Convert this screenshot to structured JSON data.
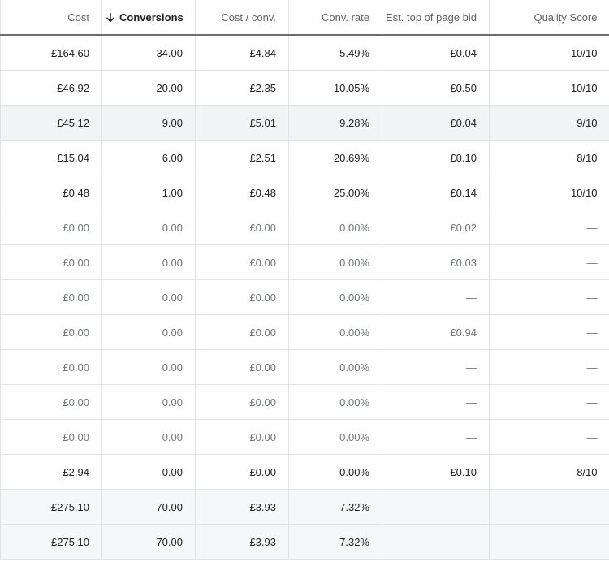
{
  "table": {
    "headers": [
      "Cost",
      "Conversions",
      "Cost / conv.",
      "Conv. rate",
      "Est. top of page bid",
      "Quality Score"
    ],
    "rows": [
      [
        "£164.60",
        "34.00",
        "£4.84",
        "5.49%",
        "£0.04",
        "10/10"
      ],
      [
        "£46.92",
        "20.00",
        "£2.35",
        "10.05%",
        "£0.50",
        "10/10"
      ],
      [
        "£45.12",
        "9.00",
        "£5.01",
        "9.28%",
        "£0.04",
        "9/10"
      ],
      [
        "£15.04",
        "6.00",
        "£2.51",
        "20.69%",
        "£0.10",
        "8/10"
      ],
      [
        "£0.48",
        "1.00",
        "£0.48",
        "25.00%",
        "£0.14",
        "10/10"
      ],
      [
        "£0.00",
        "0.00",
        "£0.00",
        "0.00%",
        "£0.02",
        "—"
      ],
      [
        "£0.00",
        "0.00",
        "£0.00",
        "0.00%",
        "£0.03",
        "—"
      ],
      [
        "£0.00",
        "0.00",
        "£0.00",
        "0.00%",
        "—",
        "—"
      ],
      [
        "£0.00",
        "0.00",
        "£0.00",
        "0.00%",
        "£0.94",
        "—"
      ],
      [
        "£0.00",
        "0.00",
        "£0.00",
        "0.00%",
        "—",
        "—"
      ],
      [
        "£0.00",
        "0.00",
        "£0.00",
        "0.00%",
        "—",
        "—"
      ],
      [
        "£0.00",
        "0.00",
        "£0.00",
        "0.00%",
        "—",
        "—"
      ],
      [
        "£2.94",
        "0.00",
        "£0.00",
        "0.00%",
        "£0.10",
        "8/10"
      ],
      [
        "£275.10",
        "70.00",
        "£3.93",
        "7.32%"
      ],
      [
        "£275.10",
        "70.00",
        "£3.93",
        "7.32%"
      ]
    ]
  }
}
